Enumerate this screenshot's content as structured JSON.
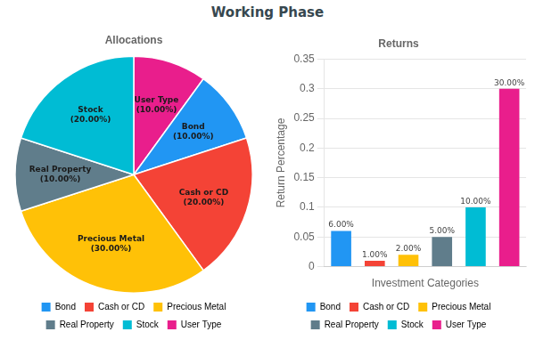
{
  "title": "Working Phase",
  "chart_data": [
    {
      "type": "pie",
      "title": "Allocations",
      "categories": [
        "User Type\n(10.00%)",
        "Bond\n(10.00%)",
        "Cash or CD\n(20.00%)",
        "Precious Metal\n(30.00%)",
        "Real Property\n(10.00%)",
        "Stock\n(20.00%)"
      ],
      "values": [
        10,
        10,
        20,
        30,
        10,
        20
      ],
      "colors": [
        "#e91e8c",
        "#2196f3",
        "#f44336",
        "#ffc107",
        "#607d8b",
        "#00bcd4"
      ],
      "legend": "bottom"
    },
    {
      "type": "bar",
      "title": "Returns",
      "categories": [
        "Bond",
        "Cash or CD",
        "Precious Metal",
        "Real Property",
        "Stock",
        "User Type"
      ],
      "values": [
        0.06,
        0.01,
        0.02,
        0.05,
        0.1,
        0.3
      ],
      "value_labels": [
        "6.00%",
        "1.00%",
        "2.00%",
        "5.00%",
        "10.00%",
        "30.00%"
      ],
      "colors": [
        "#2196f3",
        "#f44336",
        "#ffc107",
        "#607d8b",
        "#00bcd4",
        "#e91e8c"
      ],
      "xlabel": "Investment Categories",
      "ylabel": "Return Percentage",
      "ylim": [
        0,
        0.35
      ],
      "yticks": [
        0,
        0.05,
        0.1,
        0.15,
        0.2,
        0.25,
        0.3,
        0.35
      ],
      "grid": true,
      "data_labels": true,
      "tick_labels": "y",
      "legend": "bottom"
    }
  ]
}
